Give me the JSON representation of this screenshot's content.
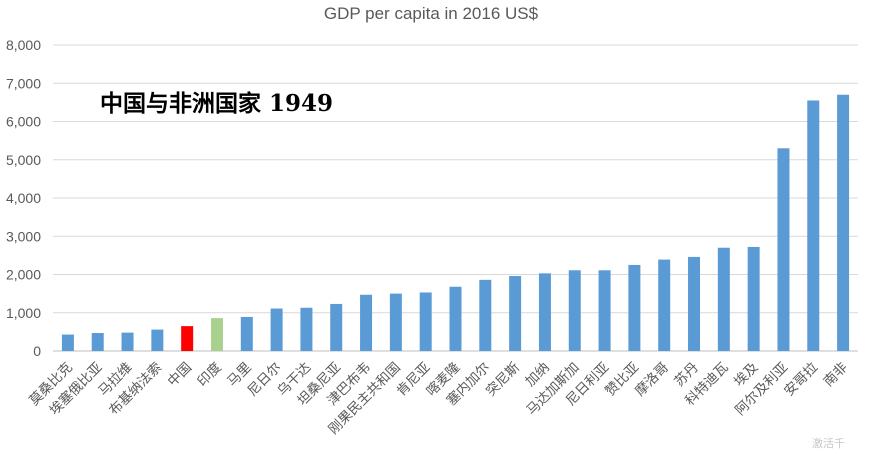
{
  "chart_data": {
    "type": "bar",
    "title": "GDP per capita in 2016 US$",
    "annotation": "中国与非洲国家 1949",
    "ylim": [
      0,
      8000
    ],
    "yticks": [
      "0",
      "1,000",
      "2,000",
      "3,000",
      "4,000",
      "5,000",
      "6,000",
      "7,000",
      "8,000"
    ],
    "grid": true,
    "legend": "none",
    "categories": [
      "莫桑比克",
      "埃塞俄比亚",
      "马拉维",
      "布基纳法索",
      "中国",
      "印度",
      "马里",
      "尼日尔",
      "乌干达",
      "坦桑尼亚",
      "津巴布韦",
      "刚果民主共和国",
      "肯尼亚",
      "喀麦隆",
      "塞内加尔",
      "突尼斯",
      "加纳",
      "马达加斯加",
      "尼日利亚",
      "赞比亚",
      "摩洛哥",
      "苏丹",
      "科特迪瓦",
      "埃及",
      "阿尔及利亚",
      "安哥拉",
      "南非"
    ],
    "values": [
      430,
      470,
      480,
      560,
      650,
      860,
      890,
      1110,
      1130,
      1230,
      1470,
      1500,
      1530,
      1680,
      1860,
      1960,
      2030,
      2110,
      2110,
      2250,
      2390,
      2460,
      2700,
      2720,
      5300,
      6550,
      6700
    ],
    "colors": {
      "default": "#5b9bd5",
      "highlight_china": "#ff0000",
      "highlight_india": "#a9d18e",
      "grid": "#d9d9d9",
      "axis": "#bfbfbf"
    },
    "highlights": {
      "中国": "highlight_china",
      "印度": "highlight_india"
    }
  },
  "watermark": "激活千"
}
